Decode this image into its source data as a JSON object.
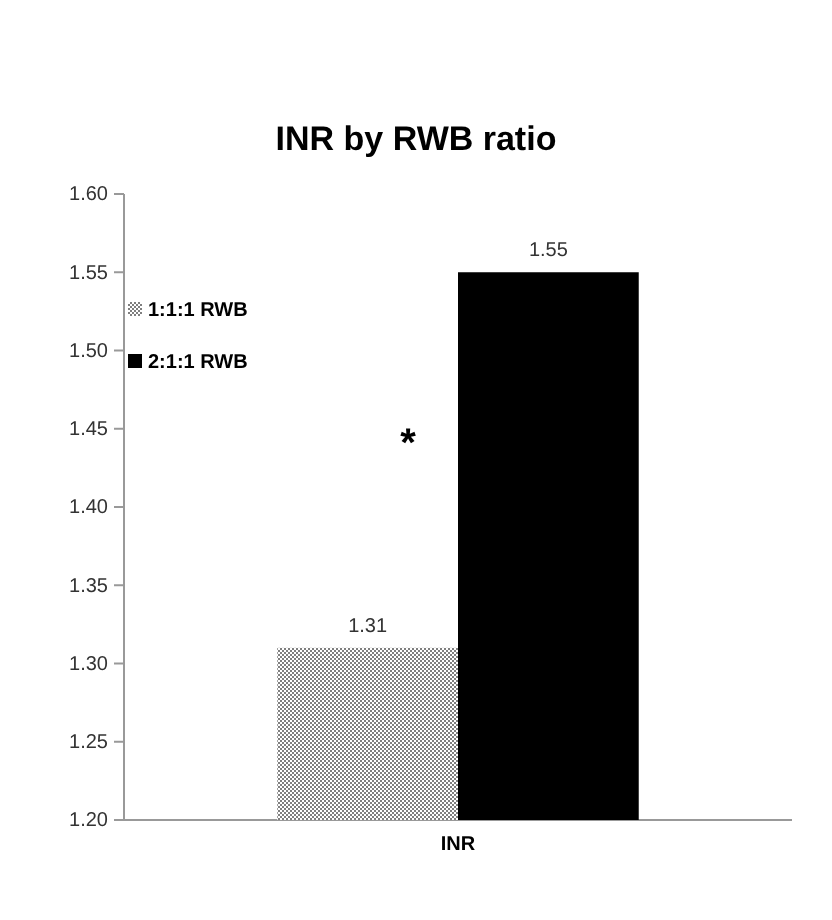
{
  "chart_data": {
    "type": "bar",
    "title": "INR by RWB ratio",
    "categories": [
      "INR"
    ],
    "series": [
      {
        "name": "1:1:1 RWB",
        "color": "#7f7f7f",
        "values": [
          1.31
        ]
      },
      {
        "name": "2:1:1 RWB",
        "color": "#000000",
        "values": [
          1.55
        ]
      }
    ],
    "ylim": [
      1.2,
      1.6
    ],
    "yticks": [
      {
        "value": 1.2,
        "label": "1.20"
      },
      {
        "value": 1.25,
        "label": "1.25"
      },
      {
        "value": 1.3,
        "label": "1.30"
      },
      {
        "value": 1.35,
        "label": "1.35"
      },
      {
        "value": 1.4,
        "label": "1.40"
      },
      {
        "value": 1.45,
        "label": "1.45"
      },
      {
        "value": 1.5,
        "label": "1.50"
      },
      {
        "value": 1.55,
        "label": "1.55"
      },
      {
        "value": 1.6,
        "label": "1.60"
      }
    ],
    "data_labels": true,
    "legend": "top left",
    "grid": false,
    "annotations": [
      "*"
    ]
  }
}
